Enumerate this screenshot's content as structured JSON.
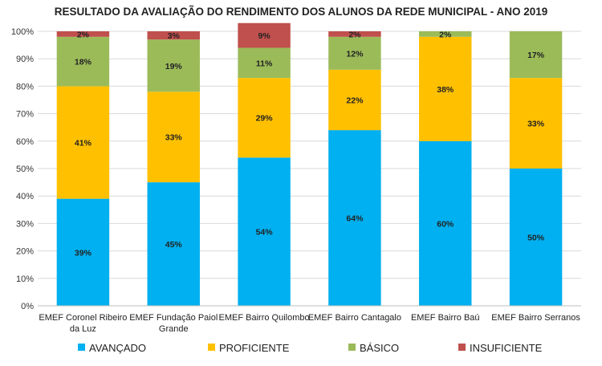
{
  "chart_data": {
    "type": "bar",
    "stacked": true,
    "title": "RESULTADO DA AVALIAÇÃO DO RENDIMENTO DOS ALUNOS DA REDE MUNICIPAL  - ANO 2019",
    "xlabel": "",
    "ylabel": "",
    "ylim": [
      0,
      100
    ],
    "yticks": [
      "0%",
      "10%",
      "20%",
      "30%",
      "40%",
      "50%",
      "60%",
      "70%",
      "80%",
      "90%",
      "100%"
    ],
    "grid": true,
    "legend_position": "bottom",
    "categories": [
      [
        "EMEF Coronel Ribeiro",
        "da Luz"
      ],
      [
        "EMEF Fundação Paiol",
        "Grande"
      ],
      [
        "EMEF Bairro Quilombo"
      ],
      [
        "EMEF Bairro Cantagalo"
      ],
      [
        "EMEF Bairro Baú"
      ],
      [
        "EMEF Bairro Serranos"
      ]
    ],
    "series": [
      {
        "name": "AVANÇADO",
        "color": "#00b0f0",
        "values": [
          39,
          45,
          54,
          64,
          60,
          50
        ],
        "labels": [
          "39%",
          "45%",
          "54%",
          "64%",
          "60%",
          "50%"
        ]
      },
      {
        "name": "PROFICIENTE",
        "color": "#ffc000",
        "values": [
          41,
          33,
          29,
          22,
          38,
          33
        ],
        "labels": [
          "41%",
          "33%",
          "29%",
          "22%",
          "38%",
          "33%"
        ]
      },
      {
        "name": "BÁSICO",
        "color": "#9bbb59",
        "values": [
          18,
          19,
          11,
          12,
          2,
          17
        ],
        "labels": [
          "18%",
          "19%",
          "11%",
          "12%",
          "2%",
          "17%"
        ]
      },
      {
        "name": "INSUFICIENTE",
        "color": "#c0504d",
        "values": [
          2,
          3,
          9,
          2,
          0,
          0
        ],
        "labels": [
          "2%",
          "3%",
          "9%",
          "2%",
          "",
          ""
        ]
      }
    ]
  }
}
